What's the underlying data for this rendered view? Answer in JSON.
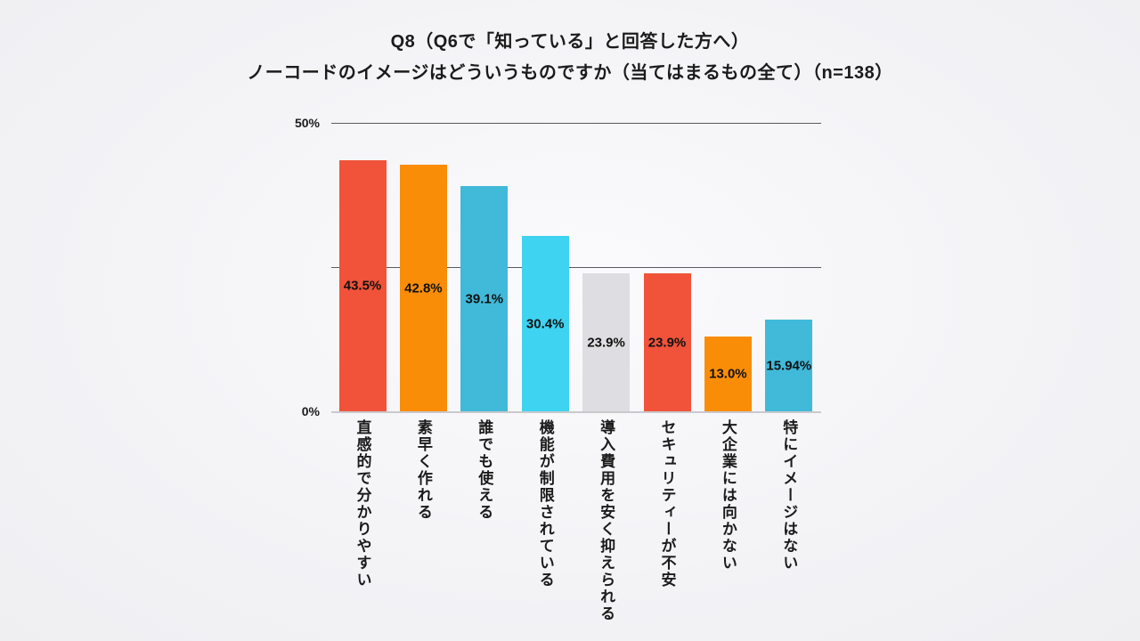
{
  "title": {
    "line1": "Q8（Q6で「知っている」と回答した方へ）",
    "line2": "ノーコードのイメージはどういうものですか（当てはまるもの全て）（n=138）"
  },
  "chart_data": {
    "type": "bar",
    "orientation": "vertical",
    "title": "Q8（Q6で「知っている」と回答した方へ）ノーコードのイメージはどういうものですか（当てはまるもの全て）（n=138）",
    "sample_size_note": "n=138",
    "categories": [
      "直感的で分かりやすい",
      "素早く作れる",
      "誰でも使える",
      "機能が制限されている",
      "導入費用を安く抑えられる",
      "セキュリティーが不安",
      "大企業には向かない",
      "特にイメージはない"
    ],
    "values": [
      43.5,
      42.8,
      39.1,
      30.4,
      23.9,
      23.9,
      13.0,
      15.94
    ],
    "value_labels": [
      "43.5%",
      "42.8%",
      "39.1%",
      "30.4%",
      "23.9%",
      "23.9%",
      "13.0%",
      "15.94%"
    ],
    "bar_colors": [
      "#F0533A",
      "#F98D08",
      "#41B9D9",
      "#3ED3F0",
      "#DEDEE2",
      "#F0533A",
      "#F98D08",
      "#41B9D9"
    ],
    "xlabel": "",
    "ylabel": "",
    "ylim": [
      0,
      50
    ],
    "y_axis": {
      "top_label": "50%",
      "bottom_label": "0%"
    },
    "gridlines_percent": [
      50,
      25,
      0
    ],
    "grid": "horizontal-only",
    "legend_position": "none",
    "value_label_position": "inside-center",
    "category_label_style": "vertical-text"
  }
}
